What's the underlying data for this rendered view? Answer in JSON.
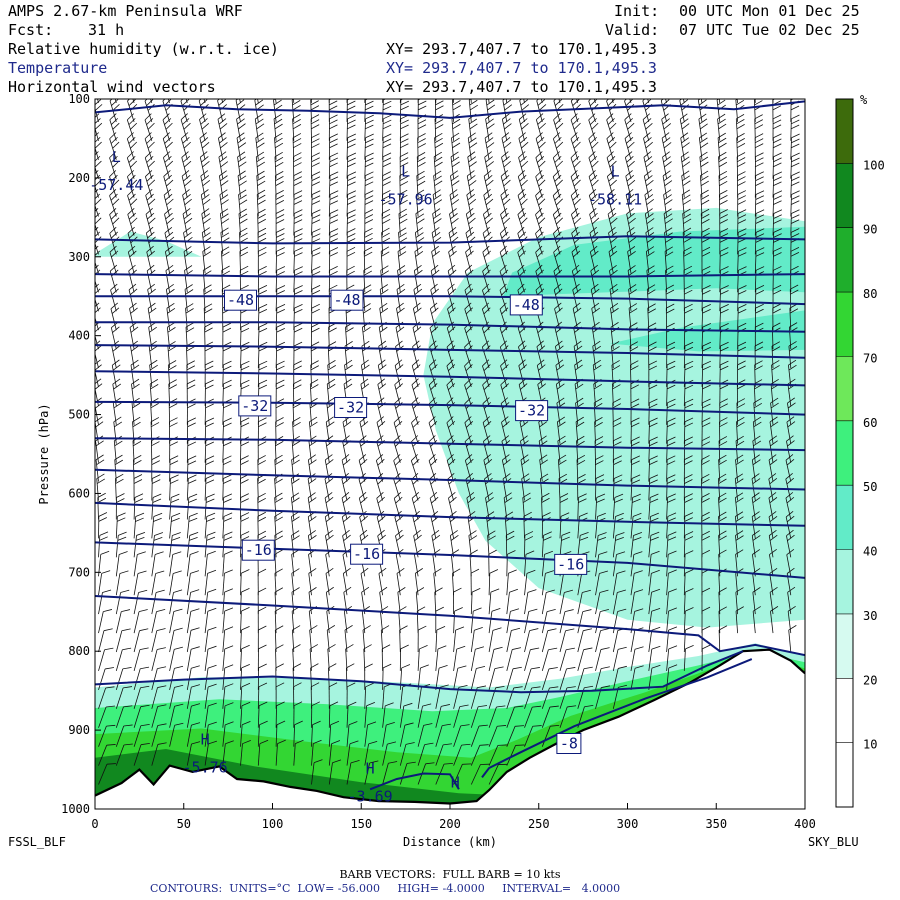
{
  "header": {
    "model": "AMPS 2.67-km Peninsula WRF",
    "init_label": "Init:",
    "init_value": "00 UTC Mon 01 Dec 25",
    "fcst_label": "Fcst:",
    "fcst_value": "31 h",
    "valid_label": "Valid:",
    "valid_value": "07 UTC Tue 02 Dec 25",
    "fields": [
      {
        "name": "Relative humidity (w.r.t. ice)",
        "xy": "XY= 293.7,407.7 to 170.1,495.3",
        "color": "#000000"
      },
      {
        "name": "Temperature",
        "xy": "XY= 293.7,407.7 to 170.1,495.3",
        "color": "#1f2a8c"
      },
      {
        "name": "Horizontal wind vectors",
        "xy": "XY= 293.7,407.7 to 170.1,495.3",
        "color": "#000000"
      }
    ]
  },
  "footer": {
    "left_station": "FSSL_BLF",
    "right_station": "SKY_BLU",
    "barb_note": "BARB VECTORS:  FULL BARB = 10 kts",
    "contours_note": "CONTOURS:  UNITS=°C  LOW= -56.000     HIGH= -4.0000     INTERVAL=   4.0000"
  },
  "chart_data": {
    "type": "cross-section",
    "title": "",
    "xlabel": "Distance (km)",
    "ylabel": "Pressure (hPa)",
    "xlim": [
      0,
      400
    ],
    "ylim": [
      1000,
      100
    ],
    "x_ticks": [
      0,
      50,
      100,
      150,
      200,
      250,
      300,
      350,
      400
    ],
    "y_ticks": [
      100,
      200,
      300,
      400,
      500,
      600,
      700,
      800,
      900,
      1000
    ],
    "colorbar": {
      "unit": "%",
      "levels": [
        10,
        20,
        30,
        40,
        50,
        60,
        70,
        80,
        90,
        100
      ],
      "colors": [
        "#ffffff",
        "#ffffff",
        "#d6faf0",
        "#a6f4df",
        "#62ebc8",
        "#3ef07d",
        "#6ee85a",
        "#33d633",
        "#1fae2c",
        "#11881f",
        "#3d6b0c"
      ]
    },
    "terrain": [
      [
        0,
        983
      ],
      [
        15,
        967
      ],
      [
        25,
        950
      ],
      [
        33,
        969
      ],
      [
        42,
        945
      ],
      [
        55,
        953
      ],
      [
        70,
        946
      ],
      [
        80,
        962
      ],
      [
        95,
        965
      ],
      [
        110,
        972
      ],
      [
        125,
        977
      ],
      [
        140,
        985
      ],
      [
        160,
        990
      ],
      [
        180,
        991
      ],
      [
        200,
        993
      ],
      [
        215,
        990
      ],
      [
        222,
        976
      ],
      [
        232,
        953
      ],
      [
        245,
        935
      ],
      [
        260,
        917
      ],
      [
        275,
        900
      ],
      [
        295,
        883
      ],
      [
        315,
        862
      ],
      [
        335,
        840
      ],
      [
        352,
        818
      ],
      [
        365,
        800
      ],
      [
        380,
        798
      ],
      [
        392,
        812
      ],
      [
        400,
        828
      ]
    ],
    "humidity_regions": [
      {
        "rh": 35,
        "points": [
          [
            0,
            1000
          ],
          [
            0,
            846
          ],
          [
            60,
            833
          ],
          [
            120,
            834
          ],
          [
            175,
            840
          ],
          [
            222,
            846
          ],
          [
            262,
            835
          ],
          [
            300,
            820
          ],
          [
            340,
            806
          ],
          [
            372,
            790
          ],
          [
            400,
            806
          ],
          [
            400,
            1000
          ]
        ]
      },
      {
        "rh": 55,
        "points": [
          [
            0,
            1000
          ],
          [
            0,
            872
          ],
          [
            70,
            861
          ],
          [
            130,
            867
          ],
          [
            190,
            876
          ],
          [
            232,
            872
          ],
          [
            262,
            858
          ],
          [
            300,
            838
          ],
          [
            340,
            818
          ],
          [
            372,
            800
          ],
          [
            400,
            814
          ],
          [
            400,
            1000
          ]
        ]
      },
      {
        "rh": 75,
        "points": [
          [
            0,
            1000
          ],
          [
            0,
            905
          ],
          [
            60,
            898
          ],
          [
            120,
            915
          ],
          [
            170,
            928
          ],
          [
            212,
            935
          ],
          [
            238,
            912
          ],
          [
            268,
            882
          ],
          [
            310,
            852
          ],
          [
            350,
            820
          ],
          [
            380,
            806
          ],
          [
            400,
            822
          ],
          [
            400,
            1000
          ]
        ]
      },
      {
        "rh": 95,
        "points": [
          [
            0,
            1000
          ],
          [
            0,
            935
          ],
          [
            40,
            924
          ],
          [
            90,
            946
          ],
          [
            150,
            966
          ],
          [
            205,
            980
          ],
          [
            400,
            1000
          ]
        ]
      },
      {
        "rh": 35,
        "points": [
          [
            0,
            296
          ],
          [
            20,
            268
          ],
          [
            40,
            280
          ],
          [
            60,
            300
          ],
          [
            0,
            300
          ]
        ]
      },
      {
        "rh": 35,
        "points": [
          [
            400,
            255
          ],
          [
            350,
            238
          ],
          [
            300,
            245
          ],
          [
            250,
            275
          ],
          [
            210,
            320
          ],
          [
            190,
            385
          ],
          [
            185,
            450
          ],
          [
            192,
            520
          ],
          [
            205,
            600
          ],
          [
            220,
            660
          ],
          [
            250,
            720
          ],
          [
            300,
            760
          ],
          [
            345,
            770
          ],
          [
            400,
            760
          ]
        ]
      },
      {
        "rh": 45,
        "points": [
          [
            400,
            262
          ],
          [
            330,
            268
          ],
          [
            270,
            285
          ],
          [
            235,
            320
          ],
          [
            230,
            350
          ],
          [
            290,
            345
          ],
          [
            350,
            340
          ],
          [
            400,
            345
          ]
        ]
      },
      {
        "rh": 45,
        "points": [
          [
            400,
            368
          ],
          [
            330,
            390
          ],
          [
            290,
            410
          ],
          [
            340,
            420
          ],
          [
            400,
            418
          ]
        ]
      }
    ],
    "isotherms": [
      {
        "value": -56,
        "points": [
          [
            0,
            117
          ],
          [
            40,
            108
          ],
          [
            80,
            113
          ],
          [
            120,
            115
          ],
          [
            160,
            118
          ],
          [
            200,
            124
          ],
          [
            240,
            116
          ],
          [
            280,
            112
          ],
          [
            320,
            108
          ],
          [
            360,
            113
          ],
          [
            400,
            103
          ]
        ]
      },
      {
        "value": -52,
        "points": [
          [
            0,
            278
          ],
          [
            100,
            283
          ],
          [
            200,
            282
          ],
          [
            300,
            274
          ],
          [
            400,
            278
          ]
        ]
      },
      {
        "value": -48,
        "points": [
          [
            0,
            322
          ],
          [
            100,
            325
          ],
          [
            200,
            325
          ],
          [
            300,
            325
          ],
          [
            400,
            322
          ]
        ]
      },
      {
        "value": -48,
        "points": [
          [
            0,
            350
          ],
          [
            100,
            350
          ],
          [
            200,
            350
          ],
          [
            300,
            353
          ],
          [
            400,
            360
          ]
        ]
      },
      {
        "value": -44,
        "points": [
          [
            0,
            383
          ],
          [
            100,
            383
          ],
          [
            200,
            386
          ],
          [
            300,
            392
          ],
          [
            400,
            395
          ]
        ]
      },
      {
        "value": -40,
        "points": [
          [
            0,
            412
          ],
          [
            100,
            414
          ],
          [
            200,
            418
          ],
          [
            300,
            422
          ],
          [
            400,
            428
          ]
        ]
      },
      {
        "value": -36,
        "points": [
          [
            0,
            445
          ],
          [
            100,
            448
          ],
          [
            200,
            452
          ],
          [
            300,
            458
          ],
          [
            400,
            463
          ]
        ]
      },
      {
        "value": -32,
        "points": [
          [
            0,
            484
          ],
          [
            100,
            485
          ],
          [
            200,
            488
          ],
          [
            300,
            493
          ],
          [
            400,
            500
          ]
        ]
      },
      {
        "value": -28,
        "points": [
          [
            0,
            530
          ],
          [
            100,
            532
          ],
          [
            200,
            537
          ],
          [
            300,
            542
          ],
          [
            400,
            545
          ]
        ]
      },
      {
        "value": -24,
        "points": [
          [
            0,
            570
          ],
          [
            100,
            577
          ],
          [
            200,
            583
          ],
          [
            300,
            590
          ],
          [
            400,
            595
          ]
        ]
      },
      {
        "value": -20,
        "points": [
          [
            0,
            612
          ],
          [
            100,
            622
          ],
          [
            200,
            630
          ],
          [
            300,
            636
          ],
          [
            400,
            641
          ]
        ]
      },
      {
        "value": -16,
        "points": [
          [
            0,
            662
          ],
          [
            100,
            670
          ],
          [
            200,
            678
          ],
          [
            300,
            688
          ],
          [
            400,
            707
          ]
        ]
      },
      {
        "value": -12,
        "points": [
          [
            0,
            730
          ],
          [
            100,
            742
          ],
          [
            200,
            755
          ],
          [
            300,
            772
          ],
          [
            340,
            780
          ],
          [
            352,
            800
          ],
          [
            372,
            792
          ],
          [
            400,
            805
          ]
        ]
      },
      {
        "value": -8,
        "points": [
          [
            0,
            842
          ],
          [
            50,
            836
          ],
          [
            100,
            832
          ],
          [
            150,
            838
          ],
          [
            200,
            848
          ],
          [
            240,
            852
          ],
          [
            280,
            850
          ],
          [
            320,
            845
          ],
          [
            345,
            818
          ],
          [
            365,
            800
          ]
        ]
      },
      {
        "value": -4,
        "points": [
          [
            218,
            960
          ],
          [
            222,
            948
          ],
          [
            238,
            930
          ],
          [
            270,
            895
          ],
          [
            310,
            860
          ],
          [
            345,
            833
          ],
          [
            370,
            810
          ]
        ]
      },
      {
        "value": -4,
        "points": [
          [
            155,
            975
          ],
          [
            170,
            962
          ],
          [
            185,
            955
          ],
          [
            200,
            956
          ],
          [
            205,
            975
          ]
        ]
      }
    ],
    "contour_labels": [
      {
        "x": 82,
        "p": 355,
        "text": "-48"
      },
      {
        "x": 142,
        "p": 355,
        "text": "-48"
      },
      {
        "x": 243,
        "p": 361,
        "text": "-48"
      },
      {
        "x": 90,
        "p": 489,
        "text": "-32"
      },
      {
        "x": 144,
        "p": 491,
        "text": "-32"
      },
      {
        "x": 246,
        "p": 495,
        "text": "-32"
      },
      {
        "x": 92,
        "p": 672,
        "text": "-16"
      },
      {
        "x": 153,
        "p": 677,
        "text": "-16"
      },
      {
        "x": 268,
        "p": 690,
        "text": "-16"
      },
      {
        "x": 267,
        "p": 917,
        "text": "-8"
      }
    ],
    "extrema": [
      {
        "x": 12,
        "p": 180,
        "letter": "L",
        "text": "-57.44"
      },
      {
        "x": 175,
        "p": 198,
        "letter": "L",
        "text": "-57.96"
      },
      {
        "x": 293,
        "p": 198,
        "letter": "L",
        "text": "-58.11"
      },
      {
        "x": 62,
        "p": 918,
        "letter": "H",
        "text": "-5.76"
      },
      {
        "x": 155,
        "p": 955,
        "letter": "H",
        "text": "-3.69"
      },
      {
        "x": 203,
        "p": 973,
        "letter": "H",
        "text": ""
      }
    ]
  }
}
